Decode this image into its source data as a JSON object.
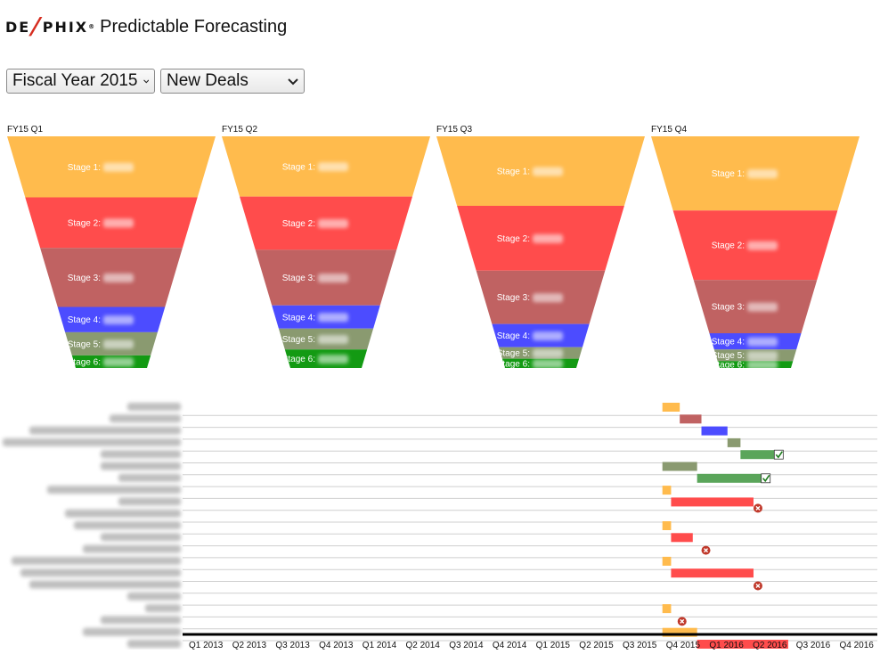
{
  "header": {
    "logo_text_left": "DE",
    "logo_text_right": "PHIX",
    "logo_mark": "®",
    "title": "Predictable Forecasting"
  },
  "controls": {
    "year_select": {
      "value": "Fiscal Year 2015"
    },
    "deal_type_select": {
      "value": "New Deals"
    }
  },
  "colors": {
    "stage1": "#ffbb4d",
    "stage2": "#ff4c4c",
    "stage3": "#c06262",
    "stage4": "#4c4cff",
    "stage5": "#8a9a70",
    "stage6": "#139a13",
    "won": "#5aa55a",
    "lost": "#c0392b",
    "axis": "#000000"
  },
  "funnels": [
    {
      "quarter": "FY15 Q1",
      "stages": [
        {
          "label": "Stage 1:",
          "share": 0.29
        },
        {
          "label": "Stage 2:",
          "share": 0.24
        },
        {
          "label": "Stage 3:",
          "share": 0.28
        },
        {
          "label": "Stage 4:",
          "share": 0.12
        },
        {
          "label": "Stage 5:",
          "share": 0.11
        },
        {
          "label": "Stage 6:",
          "share": 0.06
        }
      ]
    },
    {
      "quarter": "FY15 Q2",
      "stages": [
        {
          "label": "Stage 1:",
          "share": 0.26
        },
        {
          "label": "Stage 2:",
          "share": 0.23
        },
        {
          "label": "Stage 3:",
          "share": 0.24
        },
        {
          "label": "Stage 4:",
          "share": 0.1
        },
        {
          "label": "Stage 5:",
          "share": 0.09
        },
        {
          "label": "Stage 6:",
          "share": 0.08
        }
      ]
    },
    {
      "quarter": "FY15 Q3",
      "stages": [
        {
          "label": "Stage 1:",
          "share": 0.3
        },
        {
          "label": "Stage 2:",
          "share": 0.28
        },
        {
          "label": "Stage 3:",
          "share": 0.23
        },
        {
          "label": "Stage 4:",
          "share": 0.1
        },
        {
          "label": "Stage 5:",
          "share": 0.05
        },
        {
          "label": "Stage 6:",
          "share": 0.04
        }
      ]
    },
    {
      "quarter": "FY15 Q4",
      "stages": [
        {
          "label": "Stage 1:",
          "share": 0.32
        },
        {
          "label": "Stage 2:",
          "share": 0.3
        },
        {
          "label": "Stage 3:",
          "share": 0.23
        },
        {
          "label": "Stage 4:",
          "share": 0.07
        },
        {
          "label": "Stage 5:",
          "share": 0.05
        },
        {
          "label": "Stage 6:",
          "share": 0.03
        }
      ]
    }
  ],
  "timeline": {
    "quarters": [
      "Q1 2013",
      "Q2 2013",
      "Q3 2013",
      "Q4 2013",
      "Q1 2014",
      "Q2 2014",
      "Q3 2014",
      "Q4 2014",
      "Q1 2015",
      "Q2 2015",
      "Q3 2015",
      "Q4 2015",
      "Q1 2016",
      "Q2 2016",
      "Q3 2016",
      "Q4 2016"
    ],
    "deals": [
      {
        "bars": [
          {
            "stage": "stage1",
            "start": 11.0,
            "end": 11.4
          }
        ],
        "end": null
      },
      {
        "bars": [
          {
            "stage": "stage3",
            "start": 11.4,
            "end": 11.9
          }
        ],
        "end": null
      },
      {
        "bars": [
          {
            "stage": "stage4",
            "start": 11.9,
            "end": 12.5
          }
        ],
        "end": null
      },
      {
        "bars": [
          {
            "stage": "stage5",
            "start": 12.5,
            "end": 12.8
          }
        ],
        "end": null
      },
      {
        "bars": [
          {
            "stage": "won",
            "start": 12.8,
            "end": 13.6
          }
        ],
        "end": "won"
      },
      {
        "bars": [
          {
            "stage": "stage5",
            "start": 11.0,
            "end": 11.8
          }
        ],
        "end": null
      },
      {
        "bars": [
          {
            "stage": "won",
            "start": 11.8,
            "end": 13.3
          }
        ],
        "end": "won"
      },
      {
        "bars": [
          {
            "stage": "stage1",
            "start": 11.0,
            "end": 11.2
          }
        ],
        "end": null
      },
      {
        "bars": [
          {
            "stage": "stage2",
            "start": 11.2,
            "end": 13.1
          }
        ],
        "end": "lost"
      },
      {
        "bars": [],
        "end": null
      },
      {
        "bars": [
          {
            "stage": "stage1",
            "start": 11.0,
            "end": 11.2
          }
        ],
        "end": null
      },
      {
        "bars": [
          {
            "stage": "stage2",
            "start": 11.2,
            "end": 11.7
          }
        ],
        "end": null
      },
      {
        "bars": [],
        "end": "lost",
        "lost_at": 11.9
      },
      {
        "bars": [
          {
            "stage": "stage1",
            "start": 11.0,
            "end": 11.2
          }
        ],
        "end": null
      },
      {
        "bars": [
          {
            "stage": "stage2",
            "start": 11.2,
            "end": 13.1
          }
        ],
        "end": null
      },
      {
        "bars": [],
        "end": "lost",
        "lost_at": 13.1
      },
      {
        "bars": [],
        "end": null
      },
      {
        "bars": [
          {
            "stage": "stage1",
            "start": 11.0,
            "end": 11.2
          }
        ],
        "end": null
      },
      {
        "bars": [],
        "end": "lost",
        "lost_at": 11.35
      },
      {
        "bars": [
          {
            "stage": "stage1",
            "start": 11.0,
            "end": 11.8
          }
        ],
        "end": null
      },
      {
        "bars": [
          {
            "stage": "stage2",
            "start": 11.8,
            "end": 13.9
          }
        ],
        "end": null
      }
    ]
  }
}
